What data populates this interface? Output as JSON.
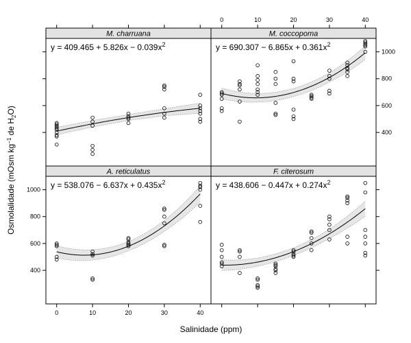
{
  "figure": {
    "xlabel": "Salinidade (ppm)",
    "ylabel": "Osmolalidade (mOsm kg",
    "ylabel_sup": "−1",
    "ylabel_mid": " de H",
    "ylabel_sub": "2",
    "ylabel_end": "O)"
  },
  "chart_data": [
    {
      "type": "scatter",
      "panel": "M. charruana",
      "equation": {
        "main": "y = 409.465 + 5.826x − 0.039x",
        "sup": "2"
      },
      "fit": {
        "a": 409.465,
        "b": 5.826,
        "c": -0.039
      },
      "band_halfwidth": [
        28,
        24,
        22,
        26,
        38
      ],
      "x": [
        0,
        0,
        0,
        0,
        0,
        0,
        0,
        0,
        0,
        0,
        10,
        10,
        10,
        10,
        10,
        10,
        20,
        20,
        20,
        20,
        20,
        30,
        30,
        30,
        30,
        30,
        30,
        40,
        40,
        40,
        40,
        40,
        40,
        40
      ],
      "y": [
        310,
        370,
        380,
        400,
        420,
        430,
        440,
        450,
        460,
        470,
        240,
        270,
        300,
        450,
        480,
        510,
        470,
        500,
        510,
        520,
        540,
        510,
        540,
        580,
        720,
        740,
        750,
        480,
        500,
        540,
        560,
        580,
        600,
        680
      ],
      "xlim": [
        -3,
        43
      ],
      "ylim": [
        150,
        1100
      ],
      "xticks": [
        0,
        10,
        20,
        30,
        40
      ],
      "yticks": [
        400,
        600,
        800,
        1000
      ]
    },
    {
      "type": "scatter",
      "panel": "M. coccopoma",
      "equation": {
        "main": "y = 690.307 − 6.865x + 0.361x",
        "sup": "2"
      },
      "fit": {
        "a": 690.307,
        "b": -6.865,
        "c": 0.361
      },
      "band_halfwidth": [
        40,
        32,
        30,
        34,
        50
      ],
      "x": [
        0,
        0,
        0,
        0,
        0,
        0,
        5,
        5,
        5,
        5,
        5,
        5,
        10,
        10,
        10,
        10,
        10,
        10,
        10,
        15,
        15,
        15,
        15,
        15,
        15,
        20,
        20,
        20,
        20,
        20,
        20,
        25,
        25,
        25,
        25,
        30,
        30,
        30,
        30,
        30,
        35,
        35,
        35,
        35,
        35,
        35,
        40,
        40,
        40,
        40,
        40,
        40
      ],
      "y": [
        560,
        580,
        650,
        680,
        690,
        700,
        480,
        630,
        720,
        750,
        760,
        780,
        700,
        720,
        760,
        790,
        820,
        900,
        680,
        530,
        540,
        620,
        760,
        800,
        850,
        500,
        520,
        570,
        780,
        800,
        930,
        650,
        660,
        670,
        680,
        690,
        710,
        800,
        820,
        860,
        820,
        850,
        870,
        880,
        900,
        920,
        1000,
        1040,
        1050,
        1060,
        1070,
        1080
      ],
      "xlim": [
        -3,
        43
      ],
      "ylim": [
        150,
        1100
      ],
      "xticks": [
        0,
        10,
        20,
        30,
        40
      ],
      "yticks": [
        400,
        600,
        800,
        1000
      ]
    },
    {
      "type": "scatter",
      "panel": "A. reticulatus",
      "equation": {
        "main": "y = 538.076 − 6.637x + 0.435x",
        "sup": "2"
      },
      "fit": {
        "a": 538.076,
        "b": -6.637,
        "c": 0.435
      },
      "band_halfwidth": [
        45,
        38,
        34,
        40,
        60
      ],
      "x": [
        0,
        0,
        0,
        0,
        0,
        10,
        10,
        10,
        10,
        10,
        20,
        20,
        20,
        20,
        20,
        20,
        30,
        30,
        30,
        30,
        30,
        30,
        40,
        40,
        40,
        40,
        40,
        40
      ],
      "y": [
        480,
        500,
        580,
        590,
        600,
        330,
        340,
        510,
        520,
        540,
        580,
        590,
        600,
        610,
        630,
        640,
        580,
        590,
        750,
        800,
        850,
        860,
        760,
        880,
        1000,
        1020,
        1030,
        1050
      ],
      "xlim": [
        -3,
        43
      ],
      "ylim": [
        150,
        1100
      ],
      "xticks": [
        0,
        10,
        20,
        30,
        40
      ],
      "yticks": [
        400,
        600,
        800,
        1000
      ]
    },
    {
      "type": "scatter",
      "panel": "F. citerosum",
      "equation": {
        "main": "y = 438.606 − 0.447x + 0.274x",
        "sup": "2"
      },
      "fit": {
        "a": 438.606,
        "b": -0.447,
        "c": 0.274
      },
      "band_halfwidth": [
        40,
        30,
        28,
        34,
        56
      ],
      "x": [
        0,
        0,
        0,
        0,
        0,
        0,
        5,
        5,
        5,
        5,
        10,
        10,
        10,
        10,
        10,
        15,
        15,
        15,
        15,
        15,
        15,
        20,
        20,
        20,
        20,
        20,
        25,
        25,
        25,
        25,
        25,
        30,
        30,
        30,
        30,
        30,
        35,
        35,
        35,
        35,
        35,
        35,
        40,
        40,
        40,
        40,
        40,
        40,
        40
      ],
      "y": [
        430,
        450,
        460,
        500,
        550,
        590,
        380,
        500,
        540,
        550,
        270,
        280,
        290,
        330,
        340,
        380,
        400,
        410,
        430,
        440,
        450,
        500,
        510,
        520,
        540,
        550,
        550,
        600,
        640,
        680,
        690,
        630,
        700,
        740,
        780,
        800,
        600,
        650,
        900,
        920,
        940,
        950,
        510,
        530,
        600,
        650,
        700,
        980,
        1050
      ],
      "xlim": [
        -3,
        43
      ],
      "ylim": [
        150,
        1100
      ],
      "xticks": [
        0,
        10,
        20,
        30,
        40
      ],
      "yticks": [
        400,
        600,
        800,
        1000
      ]
    }
  ]
}
